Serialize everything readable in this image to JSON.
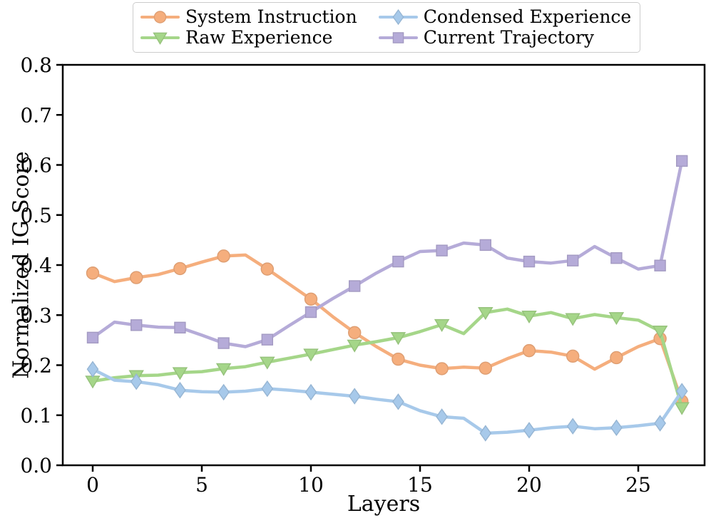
{
  "chart_data": {
    "type": "line",
    "title": "",
    "xlabel": "Layers",
    "ylabel": "Normalized IG Score",
    "x_ticks": [
      0,
      5,
      10,
      15,
      20,
      25
    ],
    "x_tick_labels": [
      "0",
      "5",
      "10",
      "15",
      "20",
      "25"
    ],
    "y_ticks": [
      0.0,
      0.1,
      0.2,
      0.3,
      0.4,
      0.5,
      0.6,
      0.7,
      0.8
    ],
    "y_tick_labels": [
      "0.0",
      "0.1",
      "0.2",
      "0.3",
      "0.4",
      "0.5",
      "0.6",
      "0.7",
      "0.8"
    ],
    "xlim": [
      -1.4,
      28.4
    ],
    "ylim": [
      0.0,
      0.8
    ],
    "grid": "off",
    "legend_position": "top-center-outside, 2 columns",
    "marker_every": 2,
    "x": [
      0,
      1,
      2,
      3,
      4,
      5,
      6,
      7,
      8,
      9,
      10,
      11,
      12,
      13,
      14,
      15,
      16,
      17,
      18,
      19,
      20,
      21,
      22,
      23,
      24,
      25,
      26,
      27
    ],
    "series": [
      {
        "name": "System Instruction",
        "color": "#f5ae7d",
        "marker": "circle",
        "values": [
          0.384,
          0.367,
          0.375,
          0.381,
          0.393,
          0.406,
          0.418,
          0.42,
          0.392,
          0.362,
          0.332,
          0.297,
          0.265,
          0.237,
          0.212,
          0.2,
          0.193,
          0.196,
          0.194,
          0.213,
          0.229,
          0.226,
          0.218,
          0.192,
          0.215,
          0.237,
          0.253,
          0.128
        ]
      },
      {
        "name": "Raw Experience",
        "color": "#a5d689",
        "marker": "triangle-down",
        "values": [
          0.168,
          0.175,
          0.179,
          0.18,
          0.185,
          0.187,
          0.193,
          0.197,
          0.206,
          0.214,
          0.222,
          0.231,
          0.24,
          0.247,
          0.255,
          0.267,
          0.281,
          0.263,
          0.305,
          0.312,
          0.298,
          0.305,
          0.293,
          0.301,
          0.295,
          0.29,
          0.268,
          0.115
        ]
      },
      {
        "name": "Condensed Experience",
        "color": "#a7c9ea",
        "marker": "diamond",
        "values": [
          0.192,
          0.17,
          0.167,
          0.161,
          0.15,
          0.147,
          0.146,
          0.148,
          0.153,
          0.15,
          0.146,
          0.142,
          0.138,
          0.132,
          0.127,
          0.109,
          0.097,
          0.094,
          0.064,
          0.066,
          0.07,
          0.075,
          0.078,
          0.073,
          0.075,
          0.079,
          0.084,
          0.148
        ]
      },
      {
        "name": "Current Trajectory",
        "color": "#b5abd8",
        "marker": "square",
        "values": [
          0.255,
          0.286,
          0.28,
          0.276,
          0.275,
          0.26,
          0.244,
          0.237,
          0.251,
          0.279,
          0.306,
          0.333,
          0.358,
          0.384,
          0.407,
          0.427,
          0.429,
          0.444,
          0.44,
          0.414,
          0.407,
          0.404,
          0.409,
          0.437,
          0.414,
          0.392,
          0.399,
          0.608
        ]
      }
    ]
  }
}
